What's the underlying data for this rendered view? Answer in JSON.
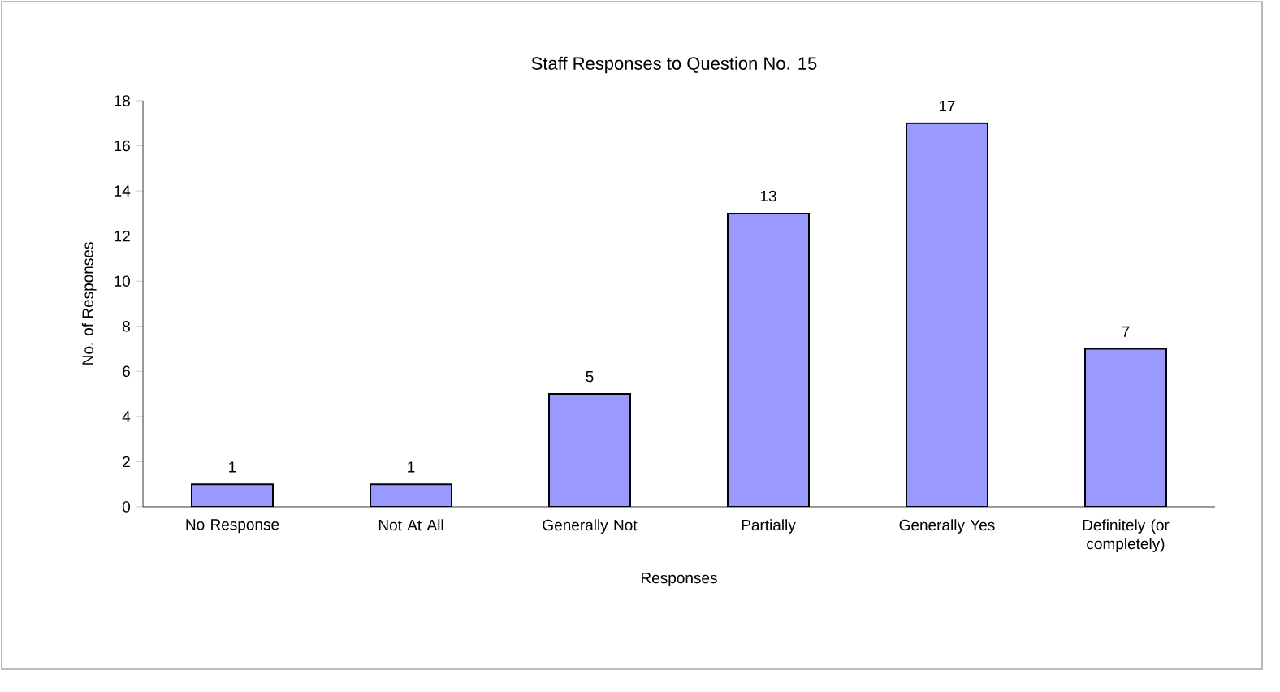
{
  "chart_data": {
    "type": "bar",
    "title": "Staff Responses to Question No. 15",
    "xlabel": "Responses",
    "ylabel": "No. of Responses",
    "categories": [
      "No Response",
      "Not At All",
      "Generally Not",
      "Partially",
      "Generally Yes",
      "Definitely (or completely)"
    ],
    "values": [
      1,
      1,
      5,
      13,
      17,
      7
    ],
    "color": "#9999ff",
    "ylim": [
      0,
      18
    ],
    "yticks": [
      0,
      2,
      4,
      6,
      8,
      10,
      12,
      14,
      16,
      18
    ],
    "grid": false,
    "data_labels": true
  }
}
